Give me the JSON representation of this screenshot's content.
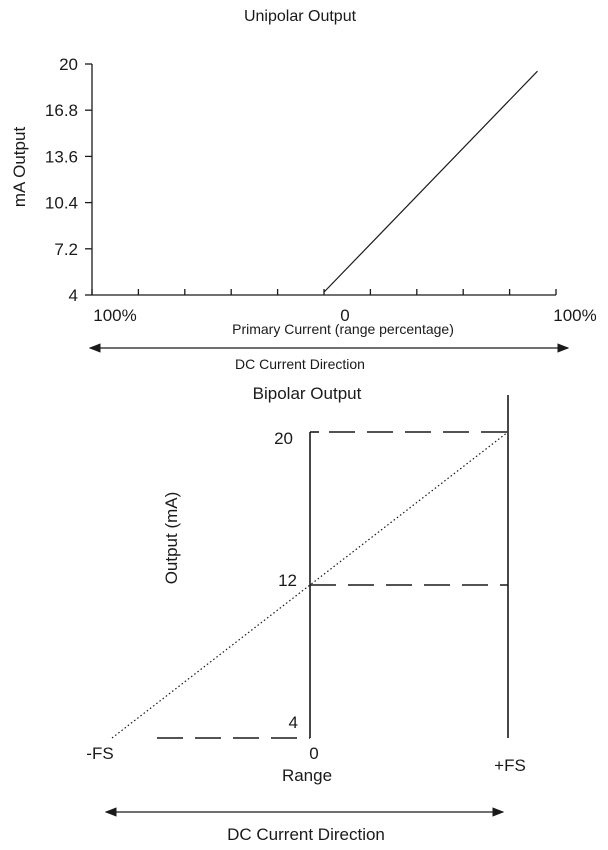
{
  "chart_data": [
    {
      "type": "line",
      "title": "Unipolar Output",
      "ylabel": "mA Output",
      "xlabel": "Primary Current (range percentage)",
      "x_tick_labels": [
        "100%",
        "0",
        "100%"
      ],
      "y_ticks": [
        "4",
        "7.2",
        "10.4",
        "13.6",
        "16.8",
        "20"
      ],
      "ylim": [
        4,
        20
      ],
      "xlim": [
        -100,
        100
      ],
      "series": [
        {
          "x": [
            0,
            92
          ],
          "y": [
            4.2,
            19.5
          ]
        }
      ],
      "arrow_label": "DC Current Direction",
      "grid": false
    },
    {
      "type": "line",
      "title": "Bipolar Output",
      "ylabel": "Output  (mA)",
      "xlabel": "Range",
      "x_tick_labels": [
        "-FS",
        "0",
        "+FS"
      ],
      "y_tick_labels": [
        "20",
        "12",
        "4"
      ],
      "xlim": [
        -1,
        1
      ],
      "ylim": [
        4,
        20
      ],
      "series": [
        {
          "x": [
            -1,
            0,
            1
          ],
          "y": [
            4,
            12,
            20
          ],
          "style": "dotted"
        }
      ],
      "reference_lines": "dashed",
      "arrow_label": "DC Current Direction",
      "grid": false
    }
  ]
}
